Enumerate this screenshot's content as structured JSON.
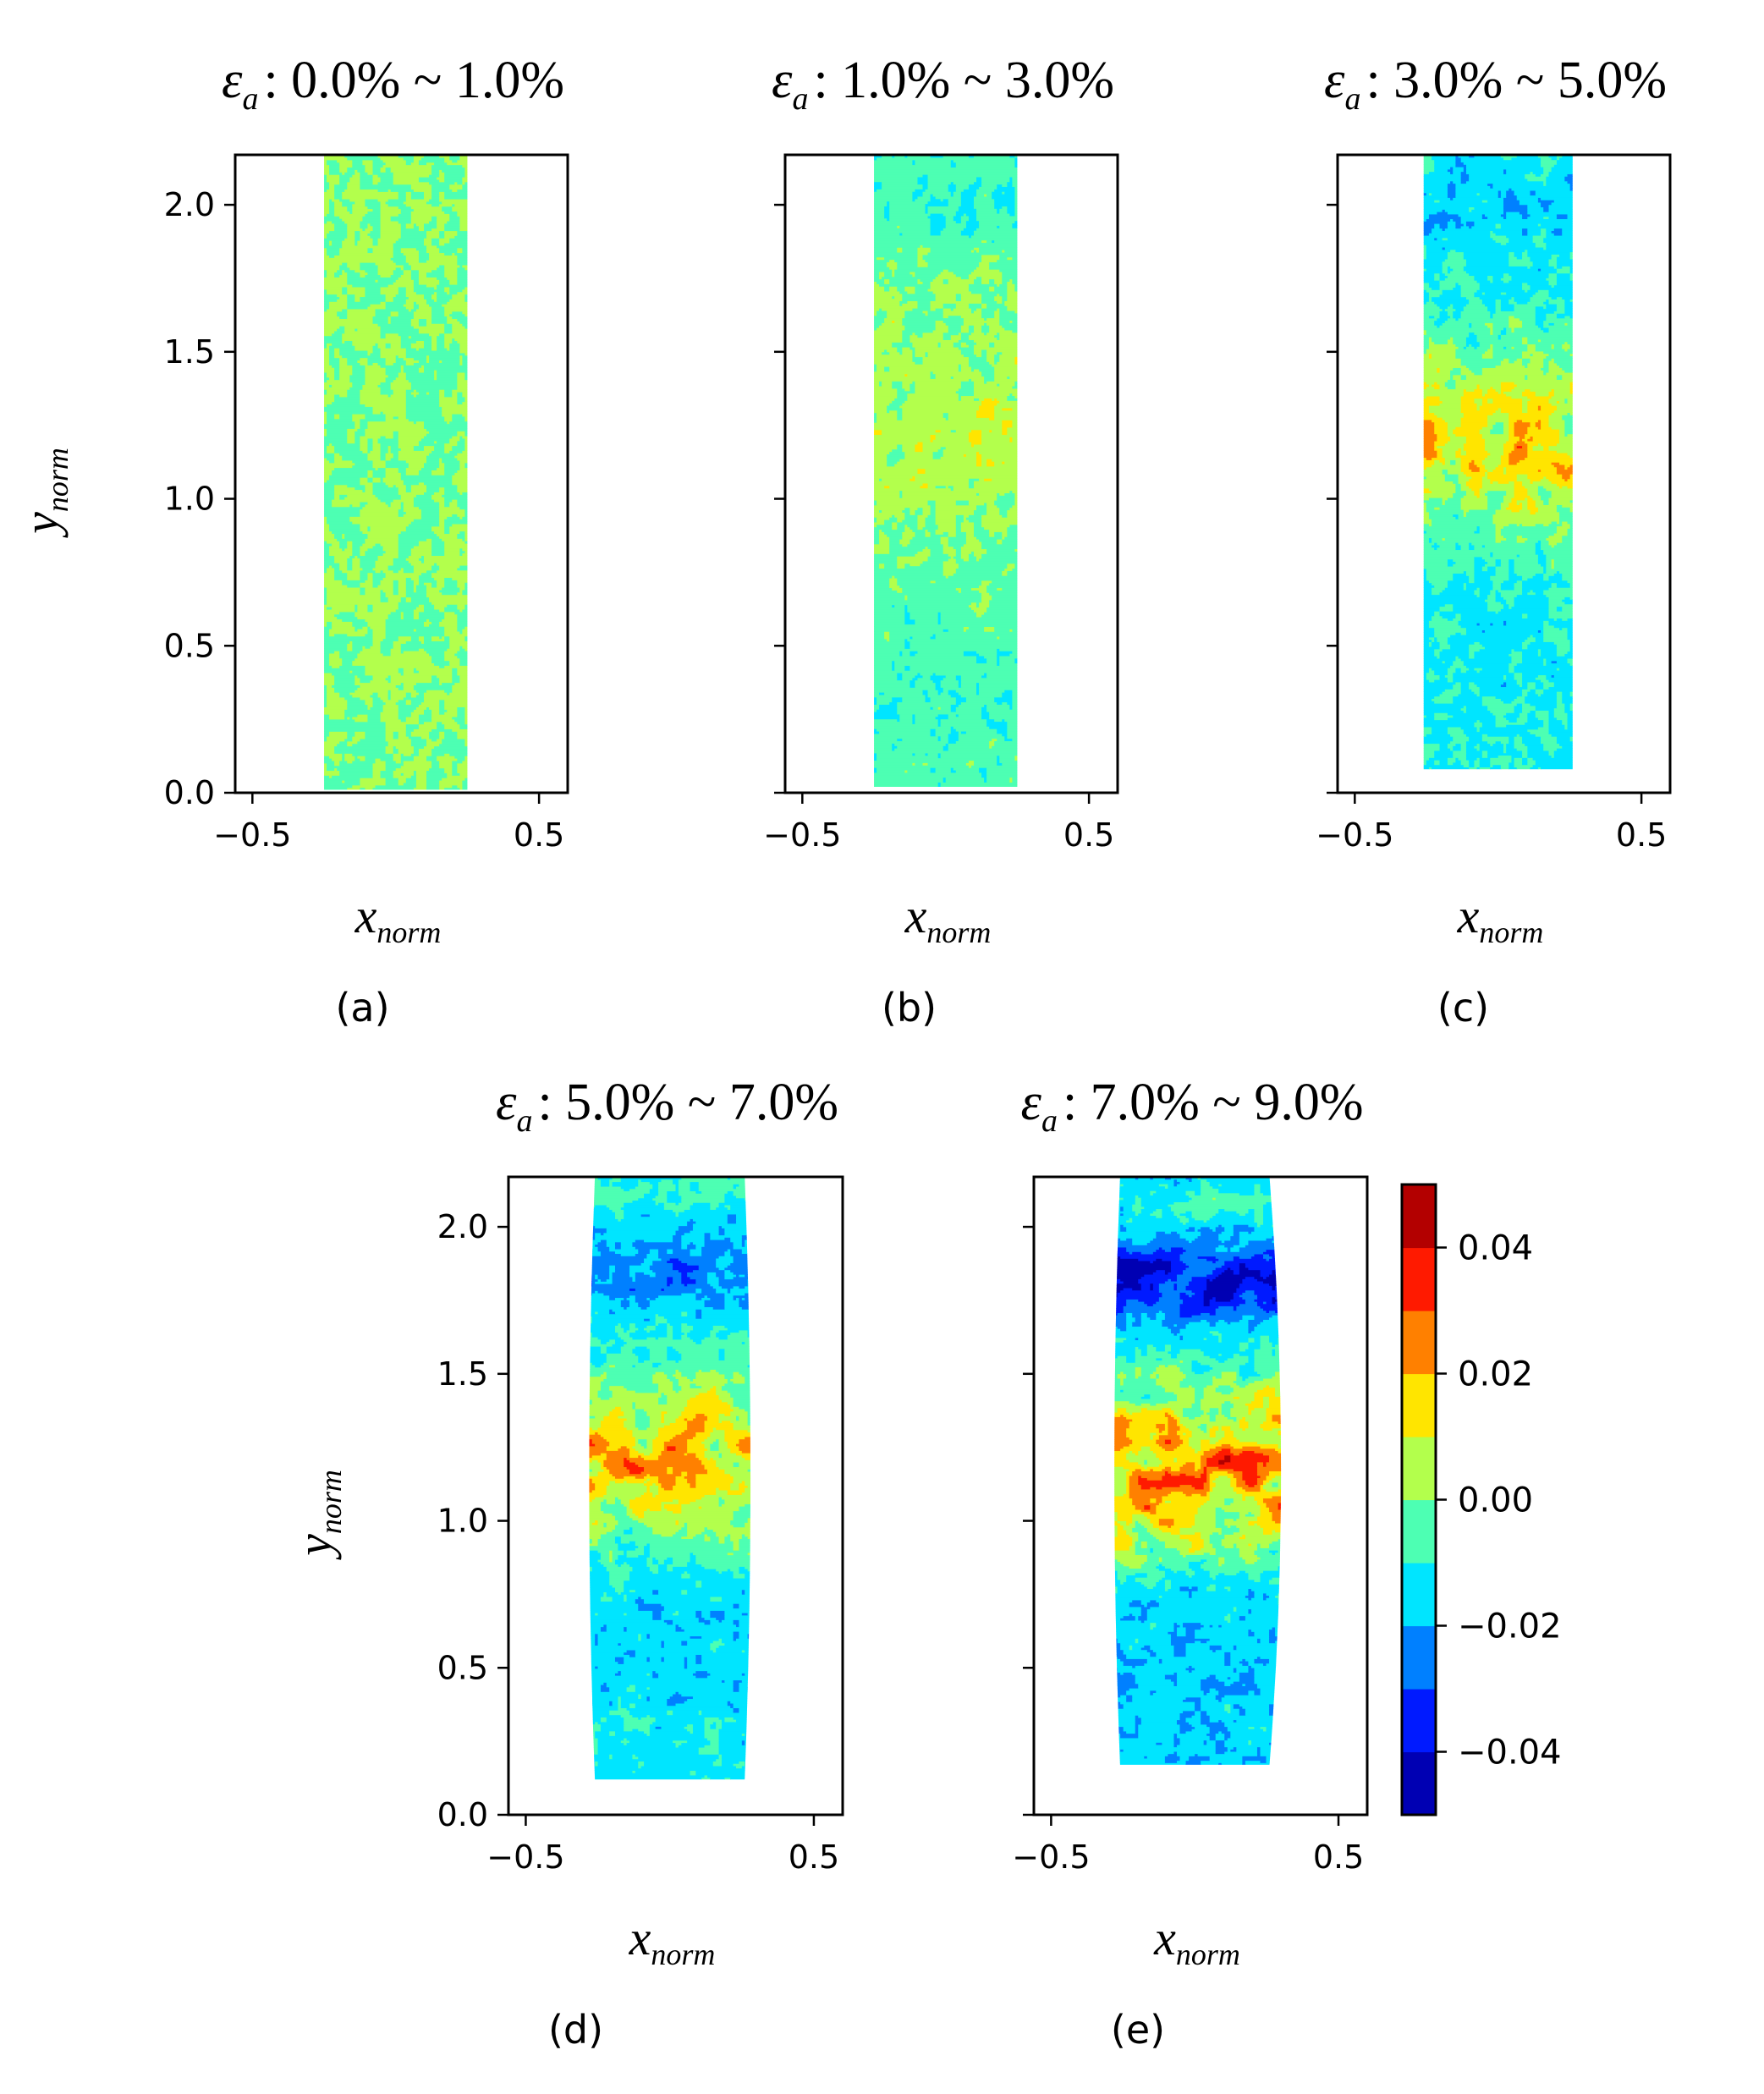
{
  "chart_data": [
    {
      "type": "heatmap",
      "panel_label": "(a)",
      "title": {
        "symbol": "ε",
        "subscript": "a",
        "range": ": 0.0% ~ 1.0%"
      },
      "xlabel": {
        "base": "x",
        "subscript": "norm"
      },
      "ylabel": {
        "base": "y",
        "subscript": "norm"
      },
      "xlim": [
        -0.56,
        0.6
      ],
      "ylim": [
        0,
        2.17
      ],
      "xticks": [
        {
          "value": -0.5,
          "label": "−0.5"
        },
        {
          "value": 0.5,
          "label": "0.5"
        }
      ],
      "yticks": [
        {
          "value": 0.0,
          "label": "0.0"
        },
        {
          "value": 0.5,
          "label": "0.5"
        },
        {
          "value": 1.0,
          "label": "1.0"
        },
        {
          "value": 1.5,
          "label": "1.5"
        },
        {
          "value": 2.0,
          "label": "2.0"
        }
      ],
      "show_yticklabels": true,
      "specimen": {
        "x_left": -0.25,
        "x_right": 0.25,
        "x_left_mid": -0.25,
        "x_right_mid": 0.25,
        "y_bottom": 0.01,
        "y_top": 2.17
      },
      "field": {
        "base": 0.0,
        "noise": 0.006,
        "seed": 11,
        "bands": []
      }
    },
    {
      "type": "heatmap",
      "panel_label": "(b)",
      "title": {
        "symbol": "ε",
        "subscript": "a",
        "range": ": 1.0% ~ 3.0%"
      },
      "xlabel": {
        "base": "x",
        "subscript": "norm"
      },
      "ylabel": {
        "base": "y",
        "subscript": "norm"
      },
      "xlim": [
        -0.56,
        0.6
      ],
      "ylim": [
        0,
        2.17
      ],
      "xticks": [
        {
          "value": -0.5,
          "label": "−0.5"
        },
        {
          "value": 0.5,
          "label": "0.5"
        }
      ],
      "yticks": [
        {
          "value": 0.0,
          "label": ""
        },
        {
          "value": 0.5,
          "label": ""
        },
        {
          "value": 1.0,
          "label": ""
        },
        {
          "value": 1.5,
          "label": ""
        },
        {
          "value": 2.0,
          "label": ""
        }
      ],
      "show_yticklabels": false,
      "specimen": {
        "x_left": -0.25,
        "x_right": 0.25,
        "x_left_mid": -0.25,
        "x_right_mid": 0.25,
        "y_bottom": 0.02,
        "y_top": 2.17
      },
      "field": {
        "base": -0.004,
        "noise": 0.007,
        "seed": 23,
        "bands": [
          {
            "y": 2.0,
            "width": 0.18,
            "amp": -0.008
          },
          {
            "y": 1.35,
            "width": 0.45,
            "amp": 0.012
          },
          {
            "y": 0.3,
            "width": 0.25,
            "amp": -0.004
          }
        ]
      }
    },
    {
      "type": "heatmap",
      "panel_label": "(c)",
      "title": {
        "symbol": "ε",
        "subscript": "a",
        "range": ": 3.0% ~ 5.0%"
      },
      "xlabel": {
        "base": "x",
        "subscript": "norm"
      },
      "ylabel": {
        "base": "y",
        "subscript": "norm"
      },
      "xlim": [
        -0.56,
        0.6
      ],
      "ylim": [
        0,
        2.17
      ],
      "xticks": [
        {
          "value": -0.5,
          "label": "−0.5"
        },
        {
          "value": 0.5,
          "label": "0.5"
        }
      ],
      "yticks": [
        {
          "value": 0.0,
          "label": ""
        },
        {
          "value": 0.5,
          "label": ""
        },
        {
          "value": 1.0,
          "label": ""
        },
        {
          "value": 1.5,
          "label": ""
        },
        {
          "value": 2.0,
          "label": ""
        }
      ],
      "show_yticklabels": false,
      "specimen": {
        "x_left": -0.26,
        "x_right": 0.26,
        "x_left_mid": -0.26,
        "x_right_mid": 0.26,
        "y_bottom": 0.08,
        "y_top": 2.17
      },
      "field": {
        "base": -0.01,
        "noise": 0.008,
        "seed": 37,
        "bands": [
          {
            "y": 2.0,
            "width": 0.2,
            "amp": -0.01
          },
          {
            "y": 1.2,
            "width": 0.3,
            "amp": 0.03
          },
          {
            "y": 0.5,
            "width": 0.3,
            "amp": -0.004
          }
        ]
      }
    },
    {
      "type": "heatmap",
      "panel_label": "(d)",
      "title": {
        "symbol": "ε",
        "subscript": "a",
        "range": ": 5.0% ~ 7.0%"
      },
      "xlabel": {
        "base": "x",
        "subscript": "norm"
      },
      "ylabel": {
        "base": "y",
        "subscript": "norm"
      },
      "xlim": [
        -0.56,
        0.6
      ],
      "ylim": [
        0,
        2.17
      ],
      "xticks": [
        {
          "value": -0.5,
          "label": "−0.5"
        },
        {
          "value": 0.5,
          "label": "0.5"
        }
      ],
      "yticks": [
        {
          "value": 0.0,
          "label": "0.0"
        },
        {
          "value": 0.5,
          "label": "0.5"
        },
        {
          "value": 1.0,
          "label": "1.0"
        },
        {
          "value": 1.5,
          "label": "1.5"
        },
        {
          "value": 2.0,
          "label": "2.0"
        }
      ],
      "show_yticklabels": true,
      "specimen": {
        "x_left": -0.26,
        "x_right": 0.26,
        "x_left_mid": -0.28,
        "x_right_mid": 0.28,
        "y_bottom": 0.12,
        "y_top": 2.17
      },
      "field": {
        "base": -0.012,
        "noise": 0.008,
        "seed": 53,
        "bands": [
          {
            "y": 2.12,
            "width": 0.06,
            "amp": 0.008
          },
          {
            "y": 1.85,
            "width": 0.15,
            "amp": -0.015
          },
          {
            "y": 1.2,
            "width": 0.25,
            "amp": 0.038
          },
          {
            "y": 0.6,
            "width": 0.25,
            "amp": -0.006
          }
        ]
      }
    },
    {
      "type": "heatmap",
      "panel_label": "(e)",
      "title": {
        "symbol": "ε",
        "subscript": "a",
        "range": ": 7.0% ~ 9.0%"
      },
      "xlabel": {
        "base": "x",
        "subscript": "norm"
      },
      "ylabel": {
        "base": "y",
        "subscript": "norm"
      },
      "xlim": [
        -0.56,
        0.6
      ],
      "ylim": [
        0,
        2.17
      ],
      "xticks": [
        {
          "value": -0.5,
          "label": "−0.5"
        },
        {
          "value": 0.5,
          "label": "0.5"
        }
      ],
      "yticks": [
        {
          "value": 0.0,
          "label": ""
        },
        {
          "value": 0.5,
          "label": ""
        },
        {
          "value": 1.0,
          "label": ""
        },
        {
          "value": 1.5,
          "label": ""
        },
        {
          "value": 2.0,
          "label": ""
        }
      ],
      "show_yticklabels": false,
      "specimen": {
        "x_left": -0.26,
        "x_right": 0.26,
        "x_left_mid": -0.28,
        "x_right_mid": 0.3,
        "y_bottom": 0.17,
        "y_top": 2.17
      },
      "field": {
        "base": -0.016,
        "noise": 0.008,
        "seed": 71,
        "bands": [
          {
            "y": 2.08,
            "width": 0.08,
            "amp": 0.008
          },
          {
            "y": 1.82,
            "width": 0.11,
            "amp": -0.035
          },
          {
            "y": 1.5,
            "width": 0.12,
            "amp": 0.012
          },
          {
            "y": 1.2,
            "width": 0.22,
            "amp": 0.05
          },
          {
            "y": 0.95,
            "width": 0.12,
            "amp": 0.02
          },
          {
            "y": 0.45,
            "width": 0.25,
            "amp": -0.002
          }
        ]
      }
    }
  ],
  "colorbar": {
    "colormap": "jet",
    "vmin": -0.05,
    "vmax": 0.05,
    "ticks": [
      {
        "value": 0.04,
        "label": "0.04"
      },
      {
        "value": 0.02,
        "label": "0.02"
      },
      {
        "value": 0.0,
        "label": "0.00"
      },
      {
        "value": -0.02,
        "label": "−0.02"
      },
      {
        "value": -0.04,
        "label": "−0.04"
      }
    ]
  }
}
